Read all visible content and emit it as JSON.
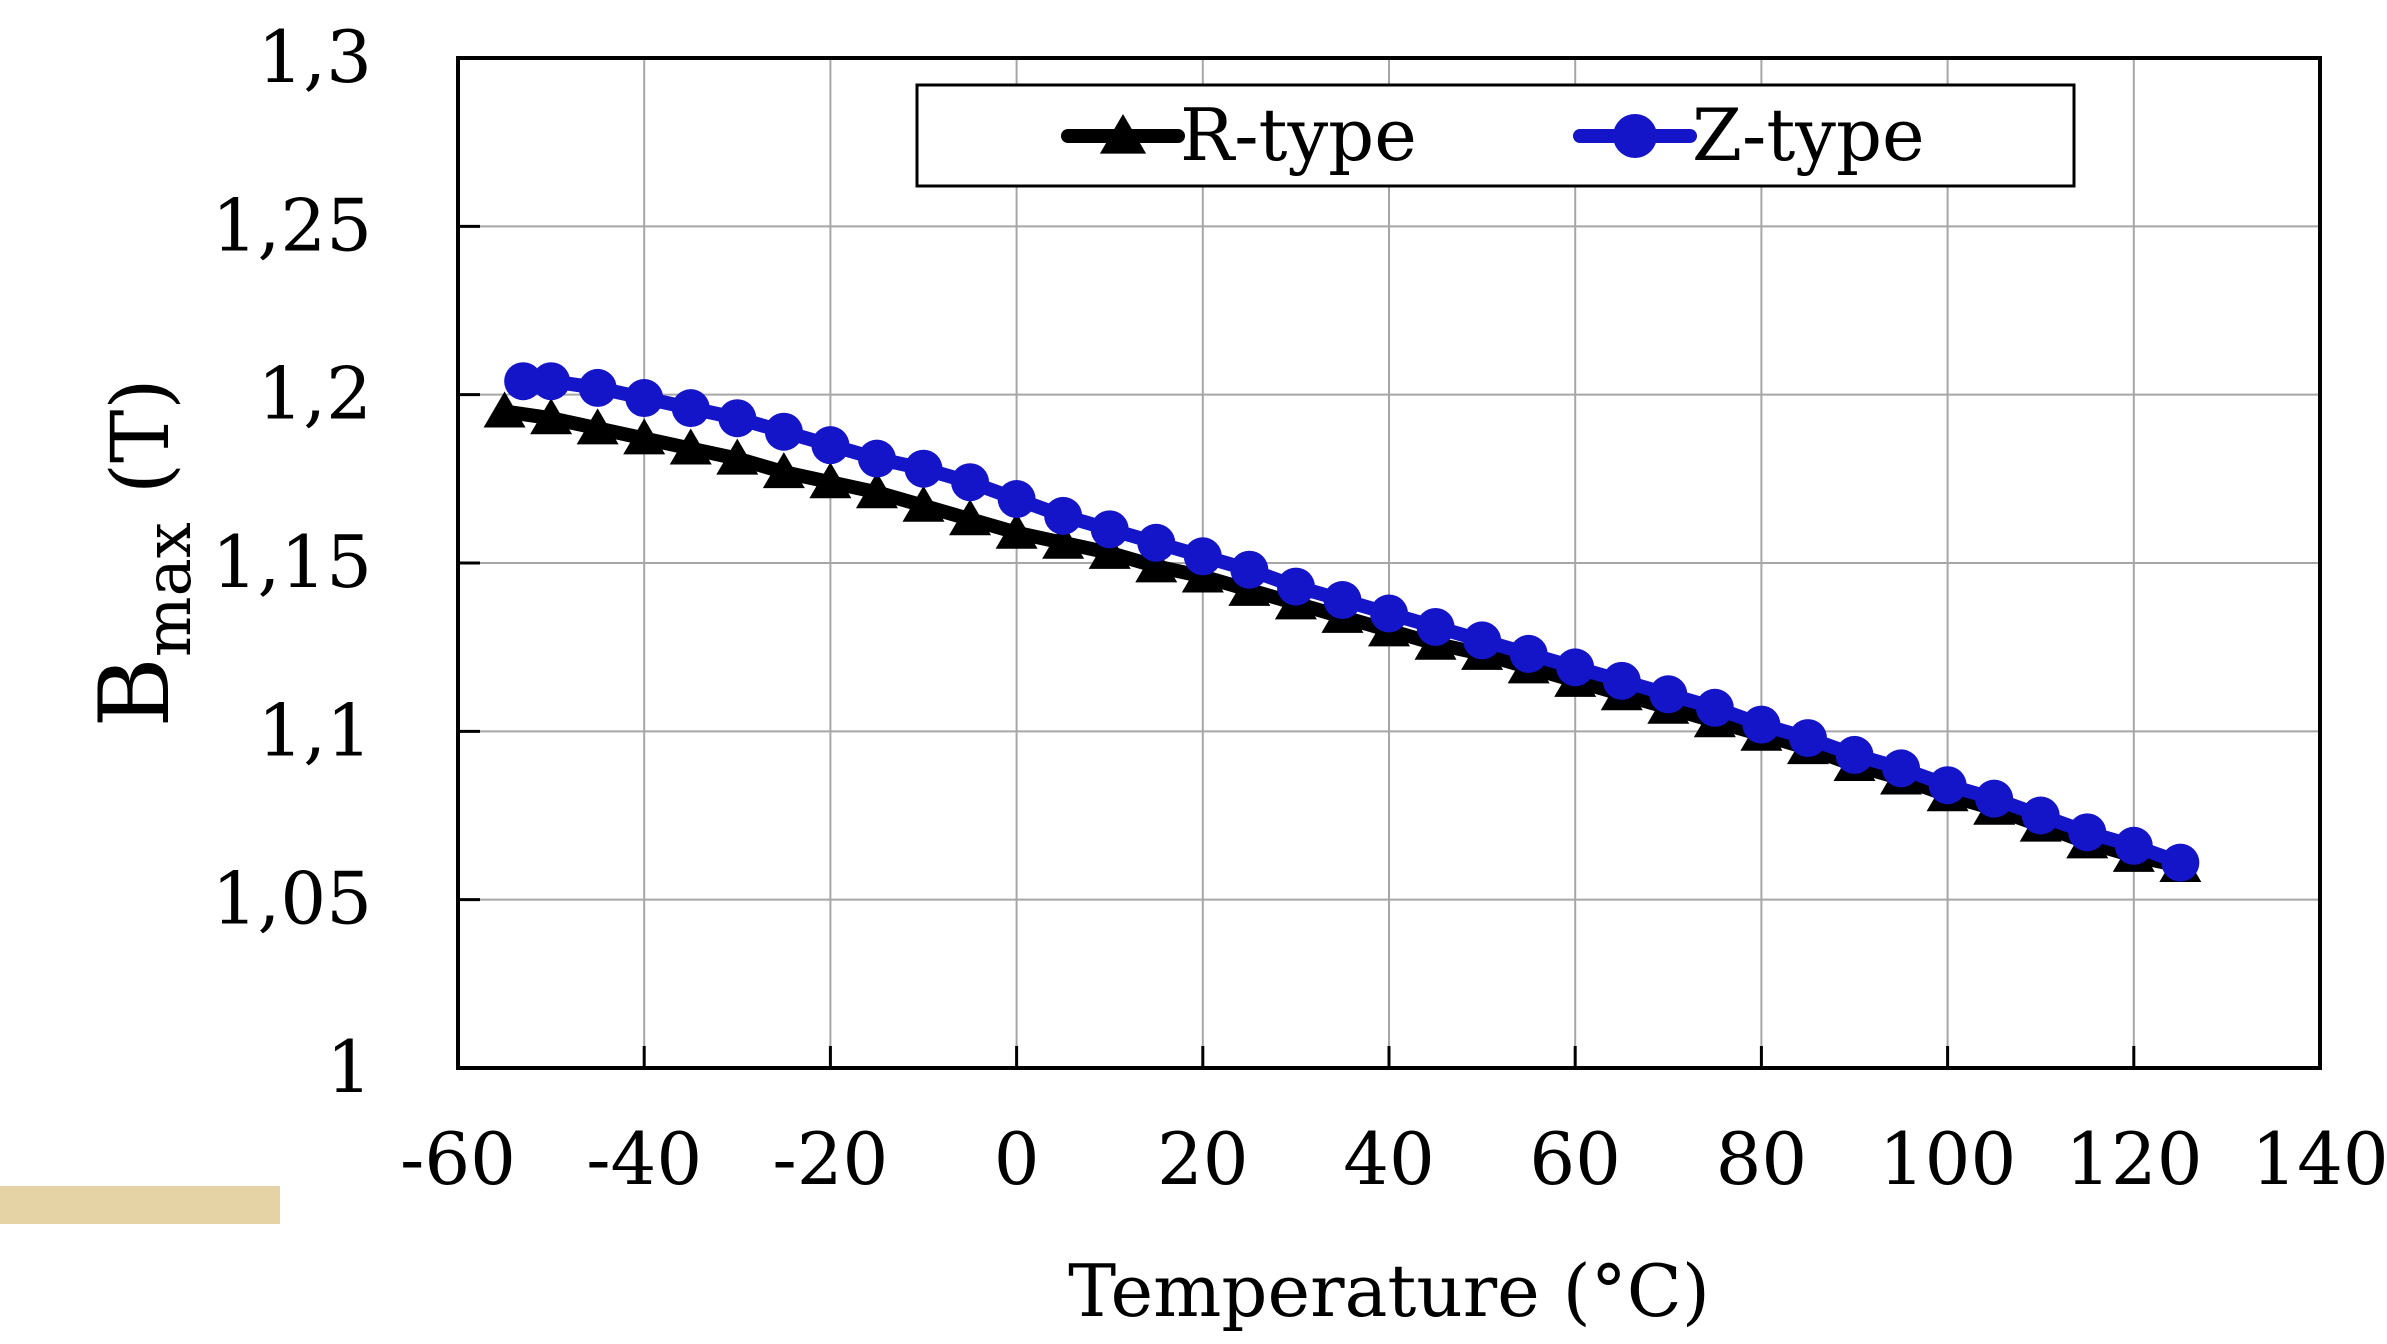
{
  "decor": {
    "accent_color": "#e5d3a6"
  },
  "chart_data": {
    "type": "scatter",
    "title": "",
    "xlabel": "Temperature (°C)",
    "ylabel_main": "B",
    "ylabel_sub": "max",
    "ylabel_unit": "(T)",
    "xlim": [
      -60,
      140
    ],
    "ylim": [
      1,
      1.3
    ],
    "xticks": [
      -60,
      -40,
      -20,
      0,
      20,
      40,
      60,
      80,
      100,
      120,
      140
    ],
    "xtick_labels": [
      "-60",
      "-40",
      "-20",
      "0",
      "20",
      "40",
      "60",
      "80",
      "100",
      "120",
      "140"
    ],
    "yticks": [
      1,
      1.05,
      1.1,
      1.15,
      1.2,
      1.25,
      1.3
    ],
    "ytick_labels": [
      "1",
      "1,05",
      "1,1",
      "1,15",
      "1,2",
      "1,25",
      "1,3"
    ],
    "grid": true,
    "legend": {
      "placement": "top",
      "entries": [
        "R-type",
        "Z-type"
      ]
    },
    "series": [
      {
        "name": "R-type",
        "color": "#000000",
        "marker": "triangle",
        "x": [
          -55,
          -50,
          -45,
          -40,
          -35,
          -30,
          -25,
          -20,
          -15,
          -10,
          -5,
          0,
          5,
          10,
          15,
          20,
          25,
          30,
          35,
          40,
          45,
          50,
          55,
          60,
          65,
          70,
          75,
          80,
          85,
          90,
          95,
          100,
          105,
          110,
          115,
          120,
          125
        ],
        "y": [
          1.195,
          1.193,
          1.19,
          1.187,
          1.184,
          1.181,
          1.177,
          1.174,
          1.171,
          1.167,
          1.163,
          1.159,
          1.156,
          1.153,
          1.149,
          1.146,
          1.142,
          1.138,
          1.134,
          1.13,
          1.126,
          1.123,
          1.119,
          1.115,
          1.111,
          1.107,
          1.103,
          1.099,
          1.095,
          1.09,
          1.086,
          1.081,
          1.077,
          1.072,
          1.067,
          1.063,
          1.06
        ]
      },
      {
        "name": "Z-type",
        "color": "#1414c8",
        "marker": "circle",
        "x": [
          -53,
          -50,
          -45,
          -40,
          -35,
          -30,
          -25,
          -20,
          -15,
          -10,
          -5,
          0,
          5,
          10,
          15,
          20,
          25,
          30,
          35,
          40,
          45,
          50,
          55,
          60,
          65,
          70,
          75,
          80,
          85,
          90,
          95,
          100,
          105,
          110,
          115,
          120,
          125
        ],
        "y": [
          1.204,
          1.204,
          1.202,
          1.199,
          1.196,
          1.193,
          1.189,
          1.185,
          1.181,
          1.178,
          1.174,
          1.169,
          1.164,
          1.16,
          1.156,
          1.152,
          1.148,
          1.143,
          1.139,
          1.135,
          1.131,
          1.127,
          1.123,
          1.119,
          1.115,
          1.111,
          1.107,
          1.102,
          1.098,
          1.093,
          1.089,
          1.084,
          1.08,
          1.075,
          1.07,
          1.066,
          1.061
        ]
      }
    ]
  }
}
